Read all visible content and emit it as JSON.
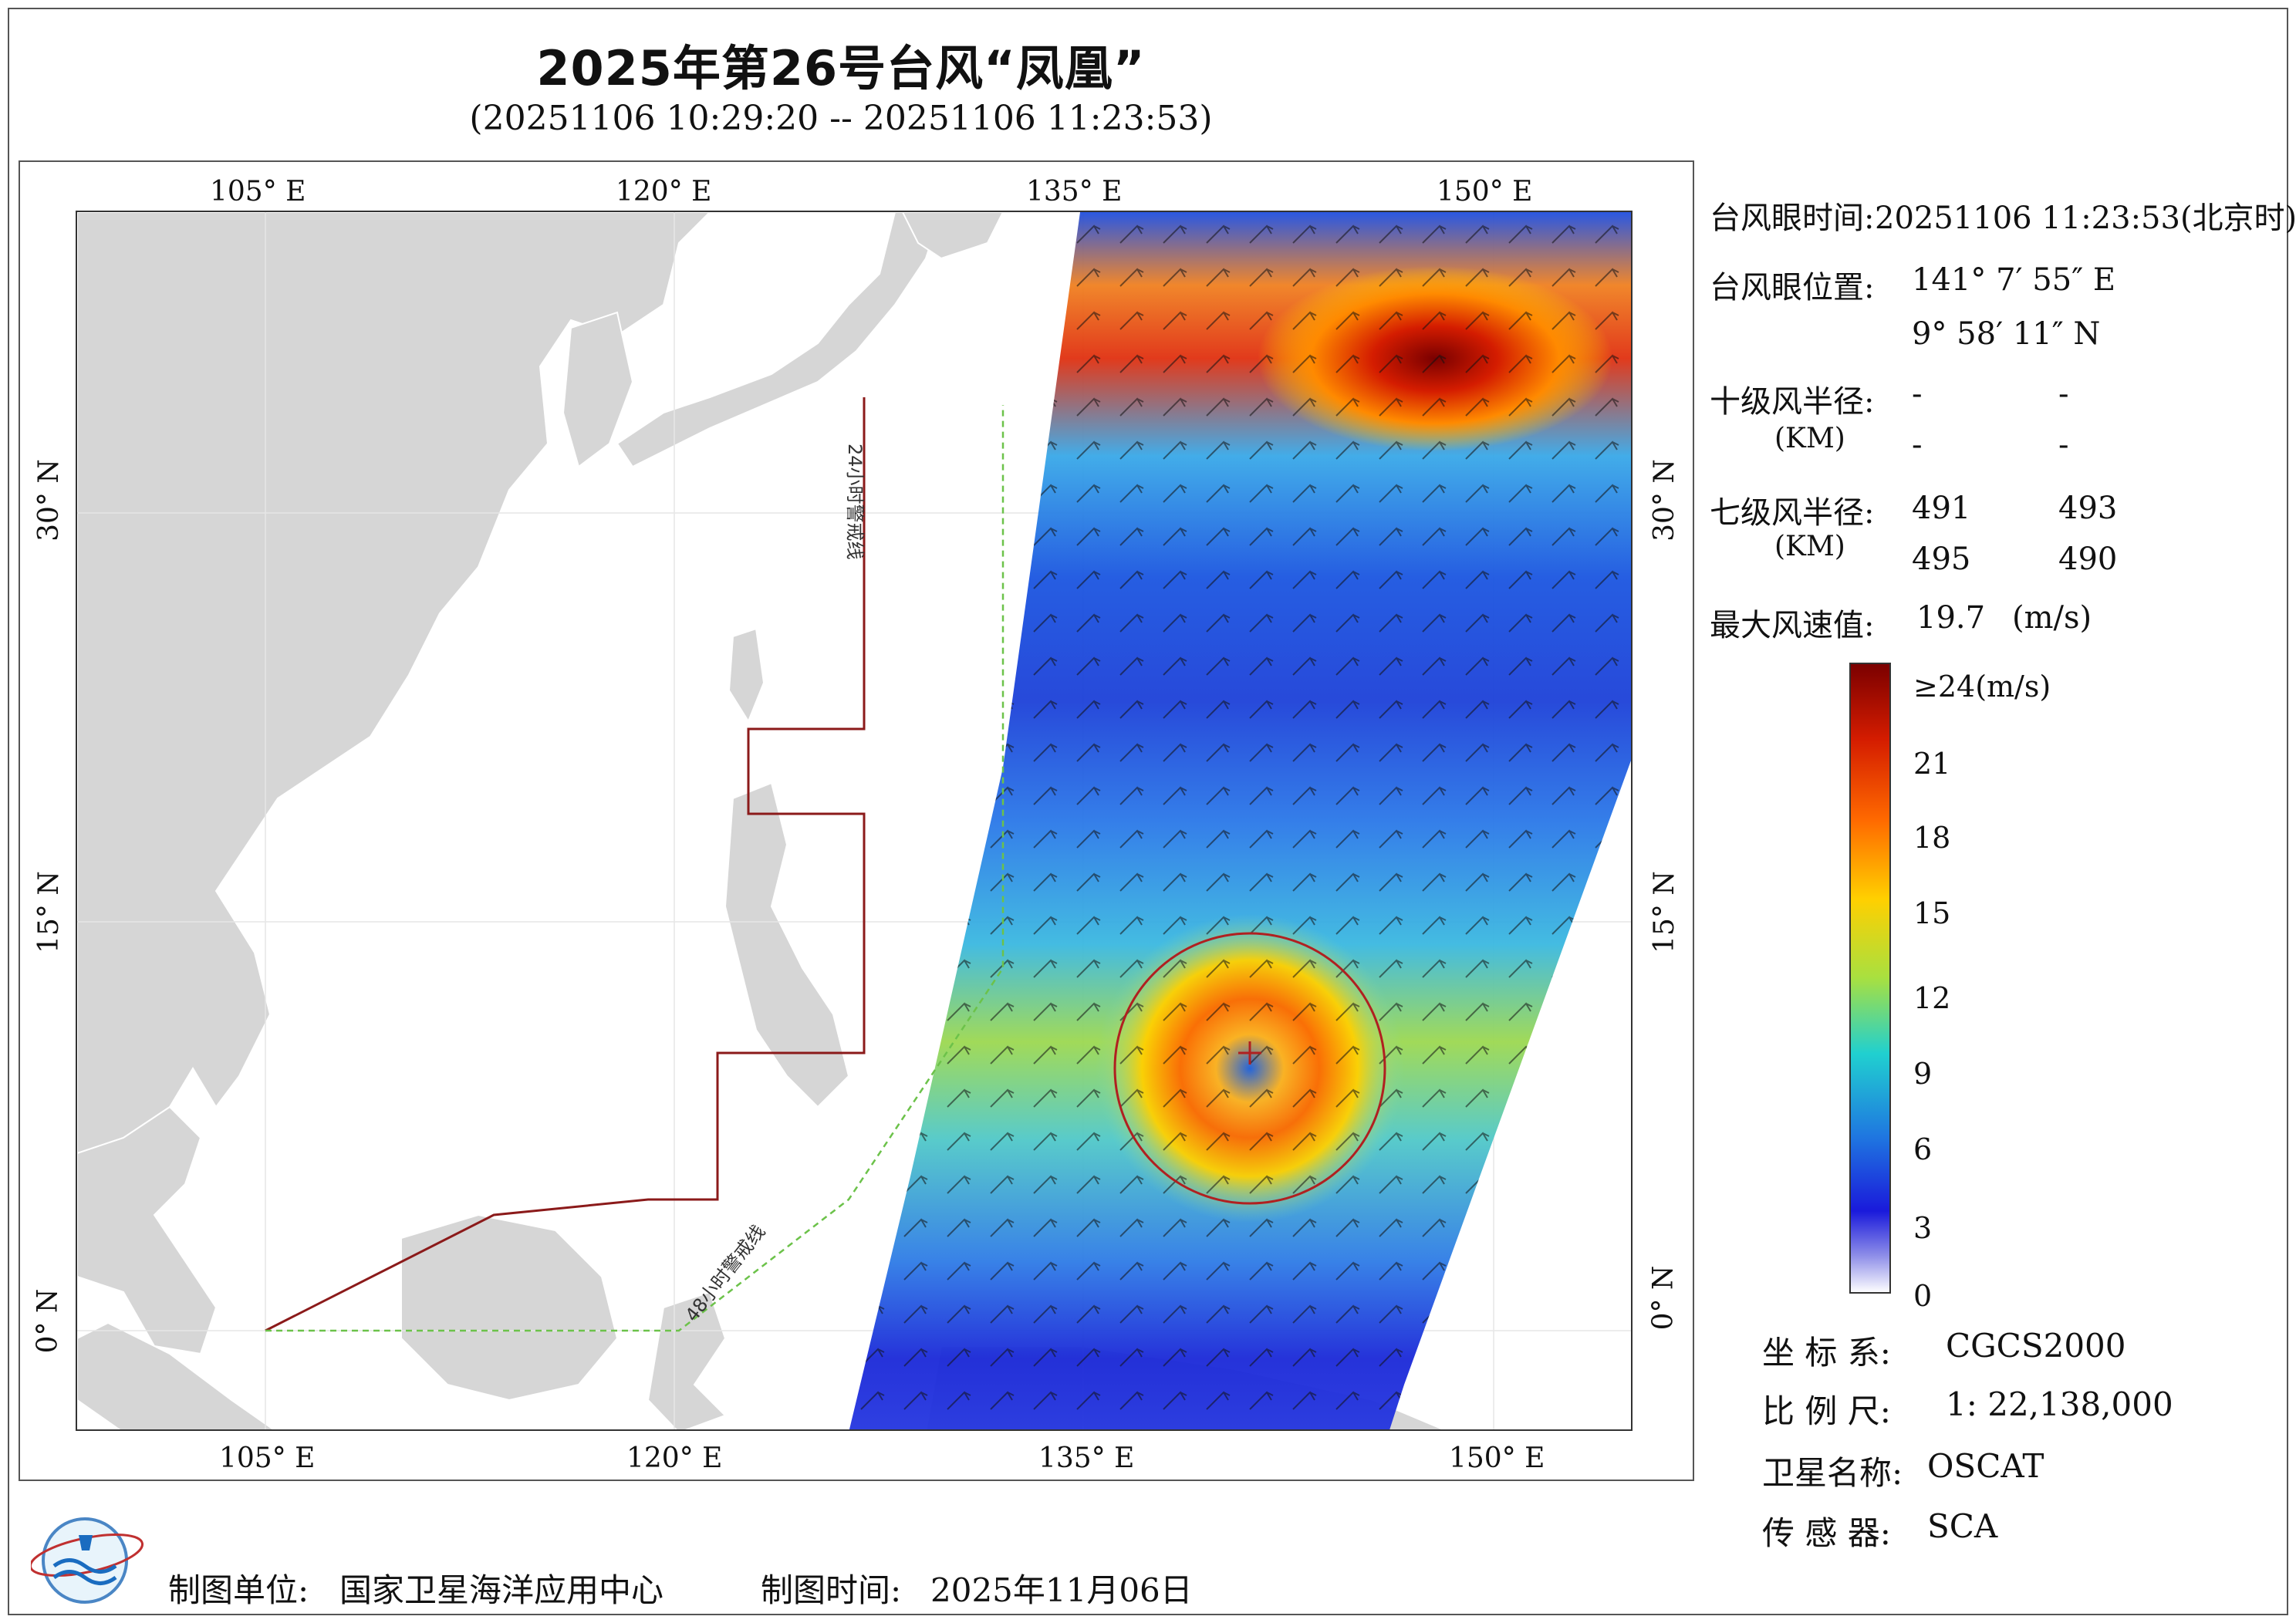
{
  "header": {
    "title": "2025年第26号台风“凤凰”",
    "subtitle": "(20251106 10:29:20 -- 20251106 11:23:53)"
  },
  "map": {
    "lon_ticks_top": [
      "105° E",
      "120° E",
      "135° E",
      "150° E"
    ],
    "lon_ticks_bottom": [
      "105° E",
      "120° E",
      "135° E",
      "150° E"
    ],
    "lat_ticks_left": [
      "30° N",
      "15° N",
      "0° N"
    ],
    "lat_ticks_right": [
      "30° N",
      "15° N",
      "0° N"
    ],
    "lines": {
      "warning_24h": "24小时警戒线",
      "warning_48h": "48小时警戒线"
    },
    "colors": {
      "land": "#d6d6d6",
      "warning_24h": "#8b1a1a",
      "warning_48h": "#6cc24a",
      "typhoon_circle": "#b02020"
    }
  },
  "info": {
    "eye_time_label": "台风眼时间:",
    "eye_time_value": "20251106 11:23:53(北京时)",
    "eye_pos_label": "台风眼位置:",
    "eye_lon": "141° 7′ 55″ E",
    "eye_lat": "9° 58′ 11″ N",
    "r10_label": "十级风半径:",
    "r10_unit": "(KM)",
    "r10_values": [
      "-",
      "-",
      "-",
      "-"
    ],
    "r7_label": "七级风半径:",
    "r7_unit": "(KM)",
    "r7_values": [
      "491",
      "493",
      "495",
      "490"
    ],
    "max_wind_label": "最大风速值:",
    "max_wind_value": "19.7",
    "max_wind_unit": "(m/s)"
  },
  "colorbar": {
    "labels": [
      "≥24(m/s)",
      "21",
      "18",
      "15",
      "12",
      "9",
      "6",
      "3",
      "0"
    ],
    "colors": [
      "#7a0000",
      "#d41c00",
      "#ff6a00",
      "#ffd000",
      "#a8e040",
      "#20d0d0",
      "#1f78e0",
      "#1a1adb",
      "#ffffff"
    ]
  },
  "meta": {
    "crs_label": "坐 标 系:",
    "crs_value": "CGCS2000",
    "scale_label": "比 例 尺:",
    "scale_value": "1: 22,138,000",
    "satellite_label": "卫星名称:",
    "satellite_value": "OSCAT",
    "sensor_label": "传 感 器:",
    "sensor_value": "SCA"
  },
  "footer": {
    "org_label": "制图单位:",
    "org_value": "国家卫星海洋应用中心",
    "date_label": "制图时间:",
    "date_value": "2025年11月06日"
  }
}
